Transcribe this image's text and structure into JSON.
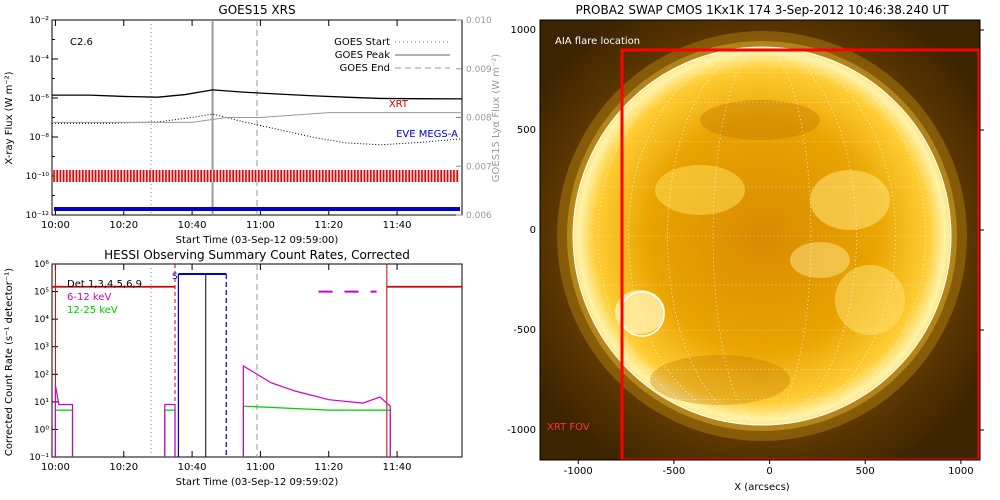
{
  "goes": {
    "title": "GOES15 XRS",
    "ylabel": "X-ray Flux (W m⁻²)",
    "y2label": "GOES15 Lyα Flux (W m⁻²)",
    "xlabel": "Start Time (03-Sep-12 09:59:00)",
    "class_label": "C2.6",
    "legend": [
      "GOES Start",
      "GOES Peak",
      "GOES End"
    ],
    "xrt_label": "XRT",
    "eve_label": "EVE MEGS-A",
    "colors": {
      "xrt": "#cc0000",
      "eve": "#0000cc",
      "data": "#000000",
      "lya": "#999999"
    }
  },
  "hessi": {
    "title": "HESSI Observing Summary Count Rates, Corrected",
    "ylabel": "Corrected Count Rate (s⁻¹ detector⁻¹)",
    "xlabel": "Start Time (03-Sep-12 09:59:02)",
    "legend": [
      {
        "label": "Det 1,3,4,5,6,9",
        "color": "#000000"
      },
      {
        "label": "6-12 keV",
        "color": "#cc00cc"
      },
      {
        "label": "12-25 keV",
        "color": "#00dd00"
      }
    ],
    "s_marker": "S"
  },
  "swap": {
    "title": "PROBA2 SWAP CMOS 1Kx1K 174  3-Sep-2012 10:46:38.240 UT",
    "aia_label": "AIA flare location",
    "xrt_fov_label": "XRT FOV",
    "xlabel": "X (arcsecs)"
  },
  "chart_data": [
    {
      "type": "line",
      "title": "GOES15 XRS",
      "xlabel": "Start Time (03-Sep-12 09:59:00)",
      "ylabel": "X-ray Flux (W m⁻²)",
      "y2label": "GOES15 Lyα Flux (W m⁻²)",
      "y_scale": "log",
      "ylim": [
        1e-12,
        0.01
      ],
      "y2lim": [
        0.006,
        0.01
      ],
      "xlim": [
        "09:59",
        "11:59"
      ],
      "xticks": [
        "10:00",
        "10:20",
        "10:40",
        "11:00",
        "11:20",
        "11:40"
      ],
      "yticks": [
        "10⁻¹²",
        "10⁻¹⁰",
        "10⁻⁸",
        "10⁻⁶",
        "10⁻⁴",
        "10⁻²"
      ],
      "y2ticks": [
        "0.006",
        "0.007",
        "0.008",
        "0.009",
        "0.010"
      ],
      "annotation": "C2.6",
      "events": {
        "GOES Start": "10:28",
        "GOES Peak": "10:46",
        "GOES End": "10:59"
      },
      "series": [
        {
          "name": "XRT",
          "x": [
            "09:59",
            "10:10",
            "10:20",
            "10:30",
            "10:38",
            "10:46",
            "10:55",
            "11:05",
            "11:15",
            "11:25",
            "11:35",
            "11:45",
            "11:59"
          ],
          "values": [
            1.4e-06,
            1.4e-06,
            1.2e-06,
            1.1e-06,
            1.5e-06,
            2.6e-06,
            2e-06,
            1.6e-06,
            1.3e-06,
            1.1e-06,
            9.5e-07,
            9.2e-07,
            9e-07
          ]
        },
        {
          "name": "EVE MEGS-A",
          "x": [
            "09:59",
            "10:15",
            "10:30",
            "10:40",
            "10:46",
            "10:55",
            "11:05",
            "11:15",
            "11:25",
            "11:35",
            "11:45",
            "11:59"
          ],
          "values": [
            5e-08,
            5e-08,
            6e-08,
            1e-07,
            1.5e-07,
            6e-08,
            2.5e-08,
            1e-08,
            5e-09,
            4e-09,
            5e-09,
            8e-09
          ]
        },
        {
          "name": "Lya",
          "x": [
            "09:59",
            "10:20",
            "10:40",
            "10:50",
            "11:00",
            "11:20",
            "11:40",
            "11:59"
          ],
          "values": [
            0.0079,
            0.0079,
            0.0079,
            0.008,
            0.008,
            0.0081,
            0.0081,
            0.0081
          ]
        }
      ],
      "xrt_coverage": [
        "09:59",
        "11:59"
      ],
      "eve_coverage": [
        "09:59",
        "11:59"
      ]
    },
    {
      "type": "line",
      "title": "HESSI Observing Summary Count Rates, Corrected",
      "xlabel": "Start Time (03-Sep-12 09:59:02)",
      "ylabel": "Corrected Count Rate (s⁻¹ detector⁻¹)",
      "y_scale": "log",
      "ylim": [
        0.1,
        1000000.0
      ],
      "xlim": [
        "09:59",
        "11:59"
      ],
      "xticks": [
        "10:00",
        "10:20",
        "10:40",
        "11:00",
        "11:20",
        "11:40"
      ],
      "yticks": [
        "10⁻¹",
        "10⁰",
        "10¹",
        "10²",
        "10³",
        "10⁴",
        "10⁵",
        "10⁶"
      ],
      "series": [
        {
          "name": "6-12 keV",
          "segments": [
            {
              "x": [
                "10:00",
                "10:01",
                "10:02",
                "10:05"
              ],
              "values": [
                40,
                8,
                8,
                8
              ]
            },
            {
              "x": [
                "10:32",
                "10:35"
              ],
              "values": [
                8,
                8
              ]
            },
            {
              "x": [
                "10:55",
                "10:58",
                "11:03",
                "11:10",
                "11:20",
                "11:30",
                "11:35",
                "11:38"
              ],
              "values": [
                200,
                120,
                50,
                25,
                12,
                9,
                15,
                7
              ]
            }
          ]
        },
        {
          "name": "12-25 keV",
          "segments": [
            {
              "x": [
                "10:00",
                "10:05"
              ],
              "values": [
                5,
                5
              ]
            },
            {
              "x": [
                "10:32",
                "10:35"
              ],
              "values": [
                5,
                5
              ]
            },
            {
              "x": [
                "10:55",
                "11:20",
                "11:38"
              ],
              "values": [
                7,
                5,
                5
              ]
            }
          ]
        }
      ],
      "attenuator_state": [
        {
          "x": [
            "09:59",
            "10:35"
          ],
          "value": 150000.0
        },
        {
          "x": [
            "11:37",
            "11:59"
          ],
          "value": 150000.0
        }
      ],
      "spacecraft_night": [
        "10:36",
        "10:50"
      ],
      "saa": [
        "11:17",
        "11:34"
      ]
    },
    {
      "type": "heatmap",
      "title": "PROBA2 SWAP CMOS 1Kx1K 174  3-Sep-2012 10:46:38.240 UT",
      "xlabel": "X (arcsecs)",
      "ylabel": "",
      "xlim": [
        -1200,
        1100
      ],
      "ylim": [
        -1150,
        1050
      ],
      "xticks": [
        "-1000",
        "-500",
        "0",
        "500",
        "1000"
      ],
      "yticks": [
        "-1000",
        "-500",
        "0",
        "500",
        "1000"
      ],
      "solar_radius_arcsec": 950,
      "aia_flare_location": [
        -590,
        -390
      ],
      "xrt_fov": {
        "x": [
          -700,
          1100
        ],
        "y": [
          -1150,
          940
        ]
      }
    }
  ]
}
